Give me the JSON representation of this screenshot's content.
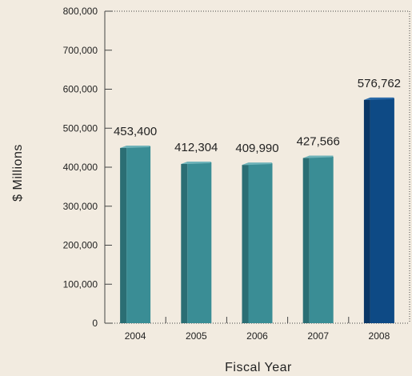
{
  "chart_data": {
    "type": "bar",
    "title": "",
    "xlabel": "Fiscal Year",
    "ylabel": "$ Millions",
    "categories": [
      "2004",
      "2005",
      "2006",
      "2007",
      "2008"
    ],
    "values": [
      453400,
      412304,
      409990,
      427566,
      576762
    ],
    "data_labels": [
      "453,400",
      "412,304",
      "409,990",
      "427,566",
      "576,762"
    ],
    "ylim": [
      0,
      800000
    ],
    "yticks": [
      0,
      100000,
      200000,
      300000,
      400000,
      500000,
      600000,
      700000,
      800000
    ],
    "ytick_labels": [
      "0",
      "100,000",
      "200,000",
      "300,000",
      "400,000",
      "500,000",
      "600,000",
      "700,000",
      "800,000"
    ],
    "grid": false,
    "legend": "none",
    "colors": {
      "default_bar": "#3a8d95",
      "highlight_bar": "#0e4a85",
      "highlight_index": 4,
      "axis": "#444444",
      "background": "#f2ebe0"
    }
  }
}
